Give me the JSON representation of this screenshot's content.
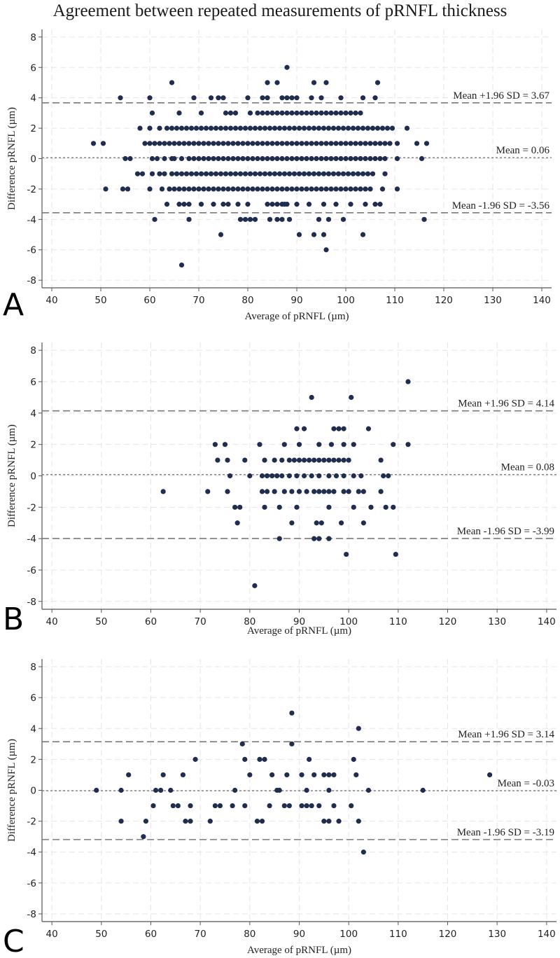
{
  "title": "Agreement between repeated measurements of pRNFL thickness",
  "colors": {
    "point": "#1f2d4e",
    "axis": "#555555",
    "grid": "#e6e6e6",
    "ref_line": "#7a7a7a"
  },
  "chart_data": [
    {
      "panel": "A",
      "type": "scatter",
      "xlabel": "Average of pRNFL (µm)",
      "ylabel": "Difference pRNFL (µm)",
      "xlim": [
        38,
        142
      ],
      "ylim": [
        -8.5,
        8.5
      ],
      "xticks": [
        "40",
        "50",
        "60",
        "70",
        "80",
        "90",
        "100",
        "110",
        "120",
        "130",
        "140"
      ],
      "yticks": [
        "-8",
        "-6",
        "-4",
        "-2",
        "0",
        "2",
        "4",
        "6",
        "8"
      ],
      "lines": [
        {
          "kind": "upper",
          "value": 3.67,
          "label": "Mean +1.96 SD = 3.67"
        },
        {
          "kind": "mean",
          "value": 0.06,
          "label": "Mean = 0.06"
        },
        {
          "kind": "lower",
          "value": -3.56,
          "label": "Mean -1.96 SD = -3.56"
        }
      ],
      "rows": [
        {
          "y": 6,
          "x": [
            88
          ]
        },
        {
          "y": 5,
          "x": [
            64.5,
            84,
            86,
            93.5,
            96,
            106.5
          ]
        },
        {
          "y": 4,
          "x": [
            54,
            60,
            69,
            72.5,
            74,
            75,
            80,
            83,
            84,
            87,
            88,
            89,
            90,
            93,
            95,
            99,
            103.5,
            106
          ]
        },
        {
          "y": 3,
          "x": [
            60.5,
            66,
            70.5,
            75.5,
            76.5,
            77.5,
            80.5
          ]
        },
        {
          "y": 2,
          "x": [
            58,
            60,
            62,
            107.5,
            108.5,
            109.5,
            112.5
          ]
        },
        {
          "y": 1,
          "x": [
            48.5,
            50.5,
            59,
            60,
            61,
            62,
            110.5,
            114.5,
            116.5
          ]
        },
        {
          "y": 0,
          "x": [
            55,
            56,
            60.5,
            61.5,
            63,
            64.5,
            65,
            66.5,
            110.5,
            115.5
          ]
        },
        {
          "y": -1,
          "x": [
            57.5,
            58.5,
            60.5,
            62,
            63,
            108
          ]
        },
        {
          "y": -2,
          "x": [
            51,
            54.5,
            55.5,
            60,
            62.5,
            107.5,
            110.5
          ]
        },
        {
          "y": -3,
          "x": [
            63.5,
            66,
            67,
            68,
            70.5,
            73,
            75,
            76,
            78,
            80,
            84,
            87.5,
            90,
            92.5,
            95.5,
            98,
            101,
            104,
            106,
            107
          ]
        },
        {
          "y": -4,
          "x": [
            61,
            68,
            78.5,
            79.5,
            80.5,
            81.5,
            84.5,
            86,
            87,
            88.5,
            94.5,
            96.5,
            99.5,
            116
          ]
        },
        {
          "y": -5,
          "x": [
            74.5,
            90.5,
            93.5,
            95.5,
            103.5
          ]
        },
        {
          "y": -6,
          "x": [
            96
          ]
        },
        {
          "y": -7,
          "x": [
            66.5
          ]
        }
      ],
      "bands": [
        {
          "y": 3,
          "from": 82,
          "to": 103
        },
        {
          "y": 2,
          "from": 63.5,
          "to": 106.5
        },
        {
          "y": 1,
          "from": 63,
          "to": 109
        },
        {
          "y": 0,
          "from": 68,
          "to": 108.5
        },
        {
          "y": -1,
          "from": 64.5,
          "to": 106
        },
        {
          "y": -2,
          "from": 64,
          "to": 105
        },
        {
          "y": -3,
          "from": 85,
          "to": 88
        }
      ]
    },
    {
      "panel": "B",
      "type": "scatter",
      "xlabel": "Average of pRNFL (µm)",
      "ylabel": "Difference pRNFL (µm)",
      "xlim": [
        38,
        142
      ],
      "ylim": [
        -8.5,
        8.5
      ],
      "xticks": [
        "40",
        "50",
        "60",
        "70",
        "80",
        "90",
        "100",
        "110",
        "120",
        "130",
        "140"
      ],
      "yticks": [
        "-8",
        "-6",
        "-4",
        "-2",
        "0",
        "2",
        "4",
        "6",
        "8"
      ],
      "lines": [
        {
          "kind": "upper",
          "value": 4.14,
          "label": "Mean +1.96 SD = 4.14"
        },
        {
          "kind": "mean",
          "value": 0.08,
          "label": "Mean = 0.08"
        },
        {
          "kind": "lower",
          "value": -3.99,
          "label": "Mean -1.96 SD = -3.99"
        }
      ],
      "rows": [
        {
          "y": 6,
          "x": [
            112
          ]
        },
        {
          "y": 5,
          "x": [
            92.5,
            100.5
          ]
        },
        {
          "y": 3,
          "x": [
            89.5,
            91,
            97,
            98,
            99,
            104
          ]
        },
        {
          "y": 2,
          "x": [
            73,
            75,
            82,
            87,
            90,
            94,
            96.5,
            99,
            101,
            109,
            112
          ]
        },
        {
          "y": 1,
          "x": [
            73.5,
            75.5,
            79,
            83,
            85,
            86.5,
            88,
            89,
            90,
            91,
            92,
            93,
            94,
            95,
            96,
            97,
            98,
            99,
            100,
            106.5
          ]
        },
        {
          "y": 0,
          "x": [
            76,
            80,
            82.5,
            83.5,
            84.5,
            85.5,
            86.5,
            88,
            89.5,
            91,
            92.5,
            94,
            96,
            97.5,
            99,
            101,
            102.5,
            107,
            108
          ]
        },
        {
          "y": -1,
          "x": [
            62.5,
            71.5,
            75.5,
            82.5,
            83.5,
            85,
            87,
            88.5,
            90,
            91.5,
            93,
            94,
            95,
            96,
            97,
            99,
            100,
            102,
            103,
            106.5
          ]
        },
        {
          "y": -2,
          "x": [
            77,
            78,
            83,
            86,
            89.5,
            96,
            101,
            104.5,
            107.5,
            109
          ]
        },
        {
          "y": -3,
          "x": [
            77.5,
            88.5,
            93.5,
            94.5,
            98.5,
            103
          ]
        },
        {
          "y": -4,
          "x": [
            86,
            93,
            94,
            96
          ]
        },
        {
          "y": -5,
          "x": [
            99.5,
            109.5
          ]
        },
        {
          "y": -7,
          "x": [
            81
          ]
        }
      ],
      "bands": []
    },
    {
      "panel": "C",
      "type": "scatter",
      "xlabel": "Average of pRNFL (µm)",
      "ylabel": "Difference pRNFL (µm)",
      "xlim": [
        38,
        142
      ],
      "ylim": [
        -8.5,
        8.5
      ],
      "xticks": [
        "40",
        "50",
        "60",
        "70",
        "80",
        "90",
        "100",
        "110",
        "120",
        "130",
        "140"
      ],
      "yticks": [
        "-8",
        "-6",
        "-4",
        "-2",
        "0",
        "2",
        "4",
        "6",
        "8"
      ],
      "lines": [
        {
          "kind": "upper",
          "value": 3.14,
          "label": "Mean +1.96 SD = 3.14"
        },
        {
          "kind": "mean",
          "value": -0.03,
          "label": "Mean = -0.03"
        },
        {
          "kind": "lower",
          "value": -3.19,
          "label": "Mean -1.96 SD = -3.19"
        }
      ],
      "rows": [
        {
          "y": 5,
          "x": [
            88.5
          ]
        },
        {
          "y": 4,
          "x": [
            102
          ]
        },
        {
          "y": 3,
          "x": [
            78.5,
            88.5
          ]
        },
        {
          "y": 2,
          "x": [
            69,
            79,
            82,
            83,
            92,
            101
          ]
        },
        {
          "y": 1,
          "x": [
            55.5,
            62.5,
            66.5,
            80,
            84.5,
            87.5,
            90.5,
            93,
            95,
            96,
            97,
            101.5,
            128.5
          ]
        },
        {
          "y": 0,
          "x": [
            49,
            54,
            61,
            62,
            64,
            77,
            85.5,
            86,
            91.5,
            96,
            104,
            115
          ]
        },
        {
          "y": -1,
          "x": [
            60.5,
            64.5,
            65.5,
            68,
            73,
            74,
            76.5,
            79,
            84,
            87,
            88,
            90.5,
            91.5,
            92.5,
            94,
            97,
            100.5
          ]
        },
        {
          "y": -2,
          "x": [
            54,
            59,
            67,
            68,
            72,
            81.5,
            82.5,
            95,
            96,
            98,
            102
          ]
        },
        {
          "y": -3,
          "x": [
            58.5
          ]
        },
        {
          "y": -4,
          "x": [
            103
          ]
        }
      ],
      "bands": []
    }
  ]
}
